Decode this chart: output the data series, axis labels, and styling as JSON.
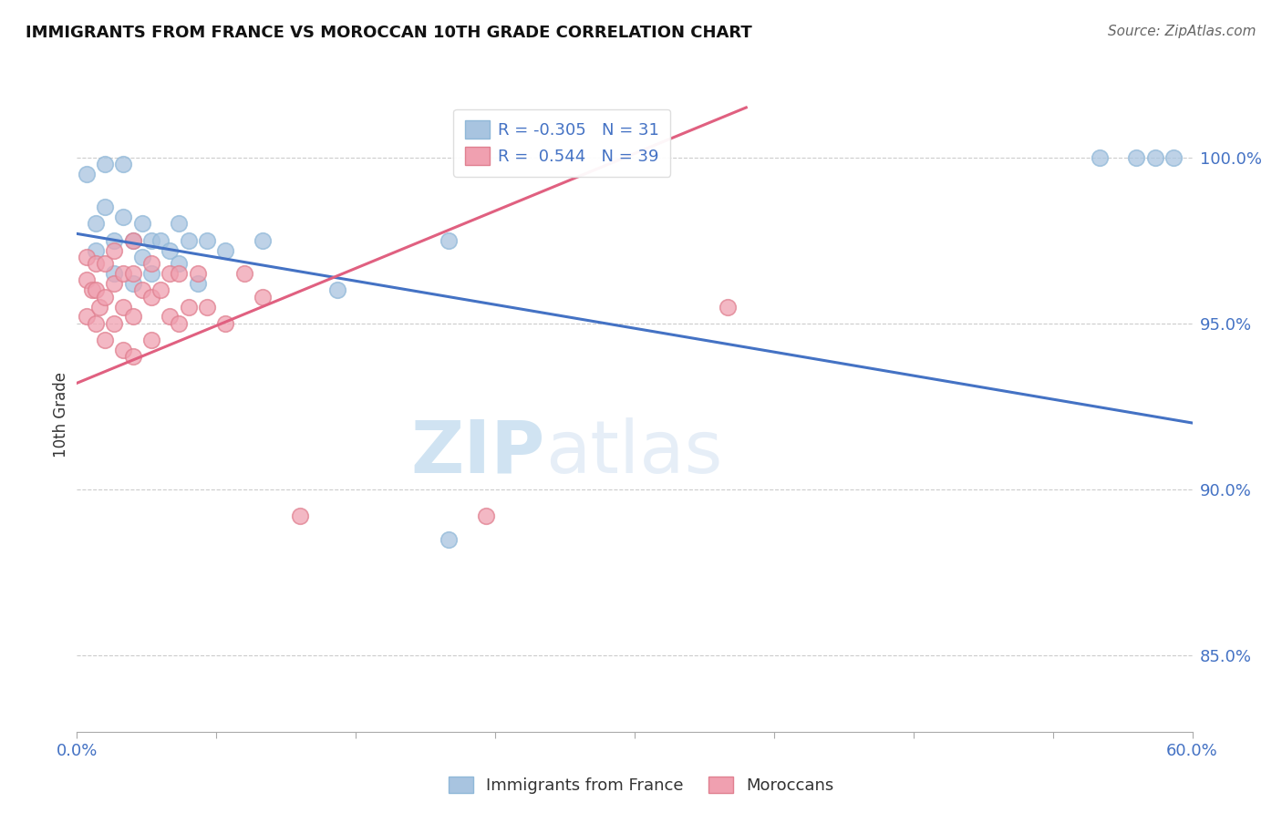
{
  "title": "IMMIGRANTS FROM FRANCE VS MOROCCAN 10TH GRADE CORRELATION CHART",
  "source": "Source: ZipAtlas.com",
  "ylabel": "10th Grade",
  "watermark_zip": "ZIP",
  "watermark_atlas": "atlas",
  "france_color": "#a8c4e0",
  "moroccan_color": "#f0a0b0",
  "france_line_color": "#4472c4",
  "moroccan_line_color": "#e06080",
  "france_r": -0.305,
  "moroccan_r": 0.544,
  "france_n": 31,
  "moroccan_n": 39,
  "xmin": 0.0,
  "xmax": 0.6,
  "ymin": 0.827,
  "ymax": 1.018,
  "yticks": [
    1.0,
    0.95,
    0.9,
    0.85
  ],
  "france_line_x": [
    0.0,
    0.6
  ],
  "france_line_y": [
    0.977,
    0.92
  ],
  "moroccan_line_x": [
    0.0,
    0.36
  ],
  "moroccan_line_y": [
    0.932,
    1.015
  ],
  "france_points_x": [
    0.005,
    0.01,
    0.01,
    0.015,
    0.015,
    0.02,
    0.02,
    0.025,
    0.025,
    0.03,
    0.03,
    0.035,
    0.035,
    0.04,
    0.04,
    0.045,
    0.05,
    0.055,
    0.055,
    0.06,
    0.065,
    0.07,
    0.08,
    0.1,
    0.14,
    0.2,
    0.2,
    0.55,
    0.57,
    0.58,
    0.59
  ],
  "france_points_y": [
    0.995,
    0.98,
    0.972,
    0.998,
    0.985,
    0.975,
    0.965,
    0.998,
    0.982,
    0.975,
    0.962,
    0.98,
    0.97,
    0.975,
    0.965,
    0.975,
    0.972,
    0.98,
    0.968,
    0.975,
    0.962,
    0.975,
    0.972,
    0.975,
    0.96,
    0.975,
    0.885,
    1.0,
    1.0,
    1.0,
    1.0
  ],
  "moroccan_points_x": [
    0.005,
    0.005,
    0.005,
    0.008,
    0.01,
    0.01,
    0.01,
    0.012,
    0.015,
    0.015,
    0.015,
    0.02,
    0.02,
    0.02,
    0.025,
    0.025,
    0.025,
    0.03,
    0.03,
    0.03,
    0.03,
    0.035,
    0.04,
    0.04,
    0.04,
    0.045,
    0.05,
    0.05,
    0.055,
    0.055,
    0.06,
    0.065,
    0.07,
    0.08,
    0.09,
    0.1,
    0.12,
    0.22,
    0.35
  ],
  "moroccan_points_y": [
    0.97,
    0.963,
    0.952,
    0.96,
    0.968,
    0.96,
    0.95,
    0.955,
    0.968,
    0.958,
    0.945,
    0.972,
    0.962,
    0.95,
    0.965,
    0.955,
    0.942,
    0.975,
    0.965,
    0.952,
    0.94,
    0.96,
    0.968,
    0.958,
    0.945,
    0.96,
    0.965,
    0.952,
    0.965,
    0.95,
    0.955,
    0.965,
    0.955,
    0.95,
    0.965,
    0.958,
    0.892,
    0.892,
    0.955
  ]
}
